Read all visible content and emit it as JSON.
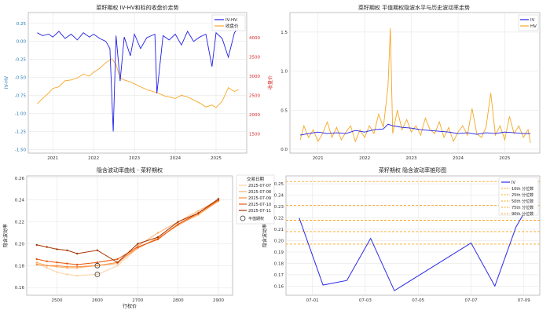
{
  "chart_data": [
    {
      "id": "p1",
      "type": "line",
      "title": "菜籽期权 IV-HV和标的收盘价走势",
      "xlabel": "",
      "ylabel": "IV-HV",
      "y2label": "收盘价",
      "x_ticks": [
        "2021",
        "2022",
        "2023",
        "2024",
        "2025"
      ],
      "xlim": [
        2020.4,
        2025.75
      ],
      "ylim": [
        -1.55,
        0.4
      ],
      "y_ticks": [
        0.25,
        0.0,
        -0.25,
        -0.5,
        -0.75,
        -1.0,
        -1.25,
        -1.5
      ],
      "y_tick_labels": [
        "0.25",
        "0.00",
        "-0.25",
        "-0.50",
        "-0.75",
        "-1.00",
        "-1.25",
        "-1.50"
      ],
      "y2lim": [
        1000,
        4650
      ],
      "y2_ticks": [
        4000,
        3500,
        3000,
        2500,
        2000,
        1500
      ],
      "grid": true,
      "legend": {
        "placement": "top-right",
        "entries": [
          "IV-HV",
          "收盘价"
        ]
      },
      "series": [
        {
          "name": "IV-HV",
          "color": "#1f1fe6",
          "axis": "left",
          "x": [
            2020.62,
            2020.75,
            2020.9,
            2021.0,
            2021.15,
            2021.3,
            2021.45,
            2021.6,
            2021.75,
            2021.9,
            2022.0,
            2022.15,
            2022.3,
            2022.4,
            2022.48,
            2022.55,
            2022.65,
            2022.75,
            2022.9,
            2023.0,
            2023.15,
            2023.3,
            2023.5,
            2023.55,
            2023.7,
            2023.85,
            2024.0,
            2024.15,
            2024.3,
            2024.45,
            2024.6,
            2024.75,
            2024.9,
            2025.0,
            2025.15,
            2025.3,
            2025.45,
            2025.55
          ],
          "values": [
            0.12,
            0.08,
            0.1,
            0.06,
            0.14,
            0.04,
            0.1,
            0.02,
            0.12,
            0.06,
            0.1,
            0.04,
            0.0,
            -0.1,
            -1.25,
            0.08,
            -0.55,
            0.06,
            -0.2,
            0.1,
            -0.1,
            0.05,
            0.1,
            -0.72,
            0.08,
            0.02,
            0.1,
            -0.05,
            0.14,
            0.0,
            0.06,
            0.1,
            -0.35,
            0.12,
            0.04,
            -0.22,
            0.12,
            0.2
          ]
        },
        {
          "name": "收盘价",
          "color": "#f5a623",
          "axis": "right",
          "x": [
            2020.62,
            2020.75,
            2020.9,
            2021.0,
            2021.15,
            2021.3,
            2021.45,
            2021.6,
            2021.75,
            2021.9,
            2022.0,
            2022.15,
            2022.3,
            2022.45,
            2022.55,
            2022.65,
            2022.75,
            2022.9,
            2023.0,
            2023.15,
            2023.3,
            2023.45,
            2023.6,
            2023.75,
            2023.9,
            2024.0,
            2024.15,
            2024.3,
            2024.45,
            2024.6,
            2024.75,
            2024.9,
            2025.0,
            2025.15,
            2025.3,
            2025.45,
            2025.55
          ],
          "values": [
            2280,
            2420,
            2560,
            2680,
            2720,
            2880,
            2900,
            2950,
            3050,
            3000,
            3100,
            3200,
            3350,
            3450,
            3300,
            2950,
            2900,
            2850,
            2800,
            2720,
            2650,
            2600,
            2550,
            2480,
            2450,
            2420,
            2500,
            2460,
            2380,
            2300,
            2200,
            2250,
            2180,
            2350,
            2700,
            2600,
            2650
          ]
        }
      ]
    },
    {
      "id": "p2",
      "type": "line",
      "title": "菜籽期权 平值期权隐波水平与历史波动率走势",
      "xlabel": "",
      "ylabel": "",
      "x_ticks": [
        "2021",
        "2022",
        "2023",
        "2024",
        "2025"
      ],
      "xlim": [
        2020.4,
        2025.75
      ],
      "ylim": [
        -0.05,
        1.75
      ],
      "y_ticks": [
        0.0,
        0.5,
        1.0,
        1.5
      ],
      "y_tick_labels": [
        "0.0",
        "0.5",
        "1.0",
        "1.5"
      ],
      "grid": true,
      "legend": {
        "placement": "top-right",
        "entries": [
          "IV",
          "HV"
        ]
      },
      "series": [
        {
          "name": "IV",
          "color": "#1f1fe6",
          "x": [
            2020.62,
            2020.8,
            2021.0,
            2021.2,
            2021.4,
            2021.6,
            2021.8,
            2022.0,
            2022.2,
            2022.4,
            2022.5,
            2022.6,
            2022.8,
            2023.0,
            2023.2,
            2023.4,
            2023.6,
            2023.8,
            2024.0,
            2024.2,
            2024.4,
            2024.6,
            2024.8,
            2025.0,
            2025.2,
            2025.4,
            2025.55
          ],
          "values": [
            0.18,
            0.2,
            0.22,
            0.2,
            0.21,
            0.2,
            0.24,
            0.22,
            0.25,
            0.26,
            0.32,
            0.3,
            0.28,
            0.27,
            0.25,
            0.24,
            0.23,
            0.22,
            0.2,
            0.21,
            0.19,
            0.21,
            0.2,
            0.22,
            0.21,
            0.2,
            0.2
          ]
        },
        {
          "name": "HV",
          "color": "#f5a623",
          "x": [
            2020.62,
            2020.7,
            2020.8,
            2020.9,
            2021.0,
            2021.1,
            2021.2,
            2021.3,
            2021.4,
            2021.5,
            2021.6,
            2021.7,
            2021.8,
            2021.9,
            2022.0,
            2022.1,
            2022.2,
            2022.3,
            2022.4,
            2022.5,
            2022.55,
            2022.6,
            2022.7,
            2022.8,
            2022.9,
            2023.0,
            2023.1,
            2023.2,
            2023.3,
            2023.4,
            2023.5,
            2023.6,
            2023.7,
            2023.8,
            2023.9,
            2024.0,
            2024.1,
            2024.2,
            2024.3,
            2024.4,
            2024.5,
            2024.6,
            2024.7,
            2024.8,
            2024.9,
            2025.0,
            2025.1,
            2025.2,
            2025.3,
            2025.4,
            2025.5,
            2025.55
          ],
          "values": [
            0.12,
            0.3,
            0.15,
            0.25,
            0.1,
            0.2,
            0.35,
            0.15,
            0.28,
            0.12,
            0.22,
            0.3,
            0.1,
            0.25,
            0.15,
            0.3,
            0.2,
            0.45,
            0.28,
            0.8,
            1.55,
            0.2,
            0.5,
            0.25,
            0.38,
            0.22,
            0.3,
            0.18,
            0.4,
            0.25,
            0.2,
            0.35,
            0.15,
            0.28,
            0.1,
            0.22,
            0.3,
            0.18,
            0.52,
            0.2,
            0.15,
            0.28,
            0.72,
            0.18,
            0.3,
            0.12,
            0.42,
            0.2,
            0.3,
            0.15,
            0.25,
            0.08
          ]
        }
      ]
    },
    {
      "id": "p3",
      "type": "line",
      "title": "隐含波动率曲线 - 菜籽期权",
      "xlabel": "行权价",
      "ylabel": "隐含波动率",
      "x_ticks": [
        2500,
        2600,
        2700,
        2800,
        2900
      ],
      "xlim": [
        2425,
        2935
      ],
      "ylim": [
        0.153,
        0.262
      ],
      "y_ticks": [
        0.16,
        0.18,
        0.2,
        0.22,
        0.24,
        0.26
      ],
      "y_tick_labels": [
        "0.16",
        "0.18",
        "0.20",
        "0.22",
        "0.24",
        "0.26"
      ],
      "grid": true,
      "legend": {
        "placement": "outside-right",
        "title": "交易日期",
        "entries": [
          "2025-07-07",
          "2025-07-08",
          "2025-07-09",
          "2025-07-10",
          "2025-07-11"
        ],
        "marker_entry": "平值期权"
      },
      "x": [
        2450,
        2475,
        2500,
        2525,
        2550,
        2600,
        2650,
        2700,
        2750,
        2800,
        2850,
        2900
      ],
      "series": [
        {
          "name": "2025-07-07",
          "color": "#fdd0a2",
          "values": [
            0.182,
            0.178,
            0.174,
            0.172,
            0.171,
            0.172,
            0.18,
            0.196,
            0.206,
            0.218,
            0.226,
            0.239
          ]
        },
        {
          "name": "2025-07-08",
          "color": "#fdae6b",
          "values": [
            0.183,
            0.18,
            0.179,
            0.178,
            0.178,
            0.18,
            0.182,
            0.198,
            0.21,
            0.22,
            0.23,
            0.24
          ]
        },
        {
          "name": "2025-07-09",
          "color": "#fd8d3c",
          "values": [
            0.181,
            0.18,
            0.18,
            0.179,
            0.179,
            0.18,
            0.183,
            0.196,
            0.205,
            0.217,
            0.227,
            0.239
          ]
        },
        {
          "name": "2025-07-10",
          "color": "#e6550d",
          "values": [
            0.186,
            0.184,
            0.183,
            0.182,
            0.181,
            0.183,
            0.186,
            0.197,
            0.204,
            0.218,
            0.228,
            0.24
          ]
        },
        {
          "name": "2025-07-11",
          "color": "#a63603",
          "values": [
            0.199,
            0.197,
            0.195,
            0.194,
            0.191,
            0.194,
            0.183,
            0.2,
            0.206,
            0.22,
            0.228,
            0.241
          ]
        }
      ],
      "atm_points": [
        {
          "x": 2600,
          "y": 0.18
        },
        {
          "x": 2600,
          "y": 0.172
        }
      ]
    },
    {
      "id": "p4",
      "type": "line",
      "title": "菜籽期权 隐含波动率锥形图",
      "xlabel": "",
      "ylabel": "隐含波动率",
      "x_ticks": [
        "07-01",
        "07-03",
        "07-05",
        "07-07",
        "07-09"
      ],
      "xlim": [
        0,
        9.6
      ],
      "ylim": [
        0.152,
        0.257
      ],
      "y_ticks": [
        0.16,
        0.17,
        0.18,
        0.19,
        0.2,
        0.21,
        0.22,
        0.23,
        0.24,
        0.25
      ],
      "y_tick_labels": [
        "0.16",
        "0.17",
        "0.18",
        "0.19",
        "0.20",
        "0.21",
        "0.22",
        "0.23",
        "0.24",
        "0.25"
      ],
      "grid": true,
      "legend": {
        "placement": "top-right",
        "entries": [
          "IV",
          "10th 分位数",
          "25th 分位数",
          "50th 分位数",
          "75th 分位数",
          "90th 分位数"
        ]
      },
      "x": [
        0.5,
        1.4,
        2.3,
        3.2,
        4.1,
        7.0,
        7.9,
        8.7,
        9.3
      ],
      "series": [
        {
          "name": "IV",
          "color": "#2a2ae8",
          "values": [
            0.22,
            0.161,
            0.165,
            0.202,
            0.156,
            0.198,
            0.16,
            0.212,
            0.236
          ]
        }
      ],
      "quantiles": [
        {
          "name": "10th 分位数",
          "value": 0.197
        },
        {
          "name": "25th 分位数",
          "value": 0.208
        },
        {
          "name": "50th 分位数",
          "value": 0.218
        },
        {
          "name": "75th 分位数",
          "value": 0.231
        },
        {
          "name": "90th 分位数",
          "value": 0.252
        }
      ],
      "quantile_color": "#f5a623"
    }
  ]
}
